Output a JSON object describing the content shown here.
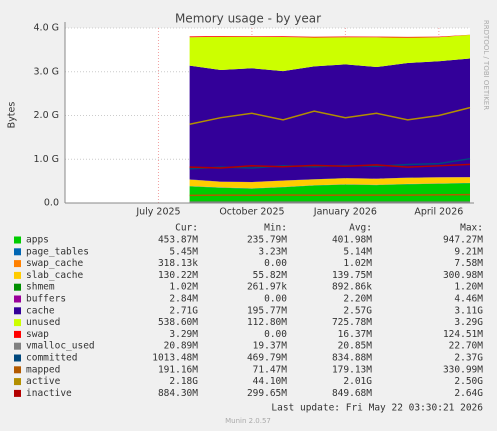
{
  "chart_data": {
    "type": "area",
    "title": "Memory usage - by year",
    "y_label": "Bytes",
    "side_text": "RRDTOOL / TOBI OETIKER",
    "x": [
      "2025-08",
      "2025-09",
      "2025-10",
      "2025-11",
      "2025-12",
      "2026-01",
      "2026-02",
      "2026-03",
      "2026-04",
      "2026-05"
    ],
    "xlim": [
      "2025-04",
      "2026-05"
    ],
    "xticks": [
      {
        "value": "2025-07",
        "label": "July 2025"
      },
      {
        "value": "2025-10",
        "label": "October 2025"
      },
      {
        "value": "2026-01",
        "label": "January 2026"
      },
      {
        "value": "2026-04",
        "label": "April 2026"
      }
    ],
    "ylim": [
      0,
      4000000000
    ],
    "yticks": [
      {
        "value": 0,
        "label": "0.0"
      },
      {
        "value": 1000000000,
        "label": "1.0 G"
      },
      {
        "value": 2000000000,
        "label": "2.0 G"
      },
      {
        "value": 3000000000,
        "label": "3.0 G"
      },
      {
        "value": 4000000000,
        "label": "4.0 G"
      }
    ],
    "grid": true,
    "stat_headers": [
      "Cur:",
      "Min:",
      "Avg:",
      "Max:"
    ],
    "series": [
      {
        "name": "apps",
        "color": "#00CC00",
        "kind": "stack",
        "values": [
          380000000,
          350000000,
          330000000,
          360000000,
          400000000,
          420000000,
          410000000,
          430000000,
          440000000,
          454000000
        ],
        "stats": [
          "453.87M",
          "235.79M",
          "401.98M",
          "947.27M"
        ]
      },
      {
        "name": "page_tables",
        "color": "#0066B3",
        "kind": "stack",
        "values": [
          5100000,
          5000000,
          5200000,
          5100000,
          5100000,
          5200000,
          5100000,
          5100000,
          5200000,
          5400000
        ],
        "stats": [
          "5.45M",
          "3.23M",
          "5.14M",
          "9.21M"
        ]
      },
      {
        "name": "swap_cache",
        "color": "#FF8000",
        "kind": "stack",
        "values": [
          500000,
          1000000,
          1200000,
          900000,
          1000000,
          1100000,
          1000000,
          1000000,
          800000,
          300000
        ],
        "stats": [
          "318.13k",
          "0.00",
          "1.02M",
          "7.58M"
        ]
      },
      {
        "name": "slab_cache",
        "color": "#FFCC00",
        "kind": "stack",
        "values": [
          150000000,
          130000000,
          140000000,
          145000000,
          135000000,
          140000000,
          138000000,
          142000000,
          140000000,
          130000000
        ],
        "stats": [
          "130.22M",
          "55.82M",
          "139.75M",
          "300.98M"
        ]
      },
      {
        "name": "shmem",
        "color": "#008F00",
        "kind": "stack",
        "values": [
          900000,
          850000,
          880000,
          900000,
          890000,
          900000,
          880000,
          900000,
          910000,
          1020000
        ],
        "stats": [
          "1.02M",
          "261.97k",
          "892.86k",
          "1.20M"
        ]
      },
      {
        "name": "buffers",
        "color": "#990099",
        "kind": "stack",
        "values": [
          2200000,
          2100000,
          2200000,
          2300000,
          2200000,
          2200000,
          2300000,
          2200000,
          2300000,
          2800000
        ],
        "stats": [
          "2.84M",
          "0.00",
          "2.20M",
          "4.46M"
        ]
      },
      {
        "name": "cache",
        "color": "#330099",
        "kind": "stack",
        "values": [
          2600000000,
          2550000000,
          2600000000,
          2500000000,
          2580000000,
          2600000000,
          2550000000,
          2620000000,
          2650000000,
          2710000000
        ],
        "stats": [
          "2.71G",
          "195.77M",
          "2.57G",
          "3.11G"
        ]
      },
      {
        "name": "unused",
        "color": "#CCFF00",
        "kind": "stack",
        "values": [
          650000000,
          760000000,
          720000000,
          780000000,
          660000000,
          620000000,
          680000000,
          580000000,
          550000000,
          539000000
        ],
        "stats": [
          "538.60M",
          "112.80M",
          "725.78M",
          "3.29G"
        ]
      },
      {
        "name": "swap",
        "color": "#FF0000",
        "kind": "stack",
        "values": [
          20000000,
          18000000,
          15000000,
          16000000,
          17000000,
          15000000,
          16000000,
          17000000,
          15000000,
          3300000
        ],
        "stats": [
          "3.29M",
          "0.00",
          "16.37M",
          "124.51M"
        ]
      },
      {
        "name": "vmalloc_used",
        "color": "#808080",
        "kind": "line",
        "values": [
          20000000,
          21000000,
          20500000,
          21000000,
          20800000,
          20900000,
          21000000,
          20800000,
          20900000,
          20900000
        ],
        "stats": [
          "20.89M",
          "19.37M",
          "20.85M",
          "22.70M"
        ]
      },
      {
        "name": "committed",
        "color": "#00487D",
        "kind": "line",
        "values": [
          780000000,
          820000000,
          800000000,
          850000000,
          830000000,
          860000000,
          840000000,
          880000000,
          900000000,
          1013000000
        ],
        "stats": [
          "1013.48M",
          "469.79M",
          "834.88M",
          "2.37G"
        ]
      },
      {
        "name": "mapped",
        "color": "#B35A00",
        "kind": "line",
        "values": [
          175000000,
          180000000,
          178000000,
          182000000,
          176000000,
          180000000,
          179000000,
          181000000,
          185000000,
          191000000
        ],
        "stats": [
          "191.16M",
          "71.47M",
          "179.13M",
          "330.99M"
        ]
      },
      {
        "name": "active",
        "color": "#B38F00",
        "kind": "line",
        "values": [
          1800000000,
          1950000000,
          2050000000,
          1900000000,
          2100000000,
          1950000000,
          2050000000,
          1900000000,
          2000000000,
          2180000000
        ],
        "stats": [
          "2.18G",
          "44.10M",
          "2.01G",
          "2.50G"
        ]
      },
      {
        "name": "inactive",
        "color": "#B30000",
        "kind": "line",
        "values": [
          820000000,
          800000000,
          850000000,
          830000000,
          860000000,
          840000000,
          870000000,
          820000000,
          850000000,
          884000000
        ],
        "stats": [
          "884.30M",
          "299.65M",
          "849.68M",
          "2.64G"
        ]
      }
    ],
    "last_update": "Last update: Fri May 22 03:30:21 2026",
    "footer": "Munin 2.0.57"
  }
}
